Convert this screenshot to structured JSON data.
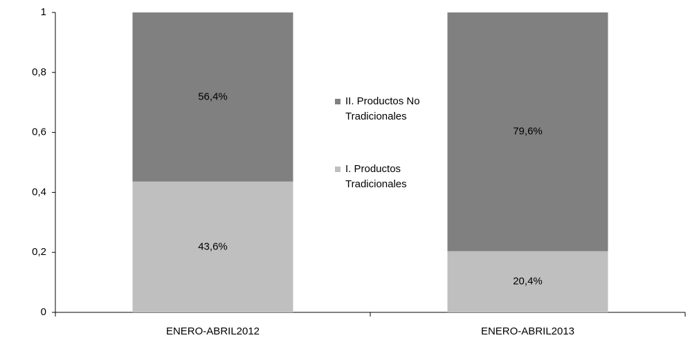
{
  "chart_data": {
    "type": "stacked_bar",
    "categories": [
      "ENERO-ABRIL2012",
      "ENERO-ABRIL2013"
    ],
    "series": [
      {
        "name": "I. Productos Tradicionales",
        "color": "#bfbfbf",
        "values": [
          0.436,
          0.204
        ],
        "value_labels": [
          "43,6%",
          "20,4%"
        ]
      },
      {
        "name": "II. Productos No Tradicionales",
        "color": "#808080",
        "values": [
          0.564,
          0.796
        ],
        "value_labels": [
          "56,4%",
          "79,6%"
        ]
      }
    ],
    "ylim": [
      0,
      1
    ],
    "yticks": [
      0,
      {
        "value": 0.2,
        "label": "0,2"
      },
      {
        "value": 0.4,
        "label": "0,4"
      },
      {
        "value": 0.6,
        "label": "0,6"
      },
      {
        "value": 0.8,
        "label": "0,8"
      },
      1
    ],
    "legend": "center"
  }
}
